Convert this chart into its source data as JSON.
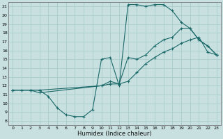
{
  "xlabel": "Humidex (Indice chaleur)",
  "bg_color": "#c8e0e0",
  "grid_color": "#a8cccc",
  "line_color": "#1a6868",
  "xlim": [
    -0.5,
    23.5
  ],
  "ylim": [
    7.5,
    21.5
  ],
  "xticks": [
    0,
    1,
    2,
    3,
    4,
    5,
    6,
    7,
    8,
    9,
    10,
    11,
    12,
    13,
    14,
    15,
    16,
    17,
    18,
    19,
    20,
    21,
    22,
    23
  ],
  "yticks": [
    8,
    9,
    10,
    11,
    12,
    13,
    14,
    15,
    16,
    17,
    18,
    19,
    20,
    21
  ],
  "curve1_x": [
    0,
    1,
    2,
    3,
    4,
    5,
    6,
    7,
    8,
    9,
    10,
    11,
    12,
    13,
    14,
    15,
    16,
    17,
    18,
    19,
    20,
    21,
    22,
    23
  ],
  "curve1_y": [
    11.5,
    11.5,
    11.5,
    11.5,
    10.8,
    9.5,
    8.7,
    8.5,
    8.5,
    9.3,
    15.0,
    15.2,
    12.0,
    21.2,
    21.2,
    21.0,
    21.2,
    21.2,
    20.5,
    19.2,
    18.5,
    17.2,
    16.5,
    15.5
  ],
  "curve2_x": [
    0,
    2,
    3,
    10,
    11,
    12,
    13,
    14,
    15,
    16,
    17,
    18,
    19,
    20,
    21,
    22,
    23
  ],
  "curve2_y": [
    11.5,
    11.5,
    11.5,
    12.0,
    12.5,
    12.2,
    15.2,
    15.0,
    15.5,
    16.5,
    17.2,
    17.5,
    18.5,
    18.5,
    17.2,
    16.5,
    15.5
  ],
  "curve3_x": [
    0,
    2,
    3,
    10,
    11,
    12,
    13,
    14,
    15,
    16,
    17,
    18,
    19,
    20,
    21,
    22,
    23
  ],
  "curve3_y": [
    11.5,
    11.5,
    11.2,
    12.0,
    12.2,
    12.2,
    12.5,
    13.5,
    14.5,
    15.2,
    15.8,
    16.2,
    16.8,
    17.2,
    17.5,
    15.8,
    15.5
  ]
}
